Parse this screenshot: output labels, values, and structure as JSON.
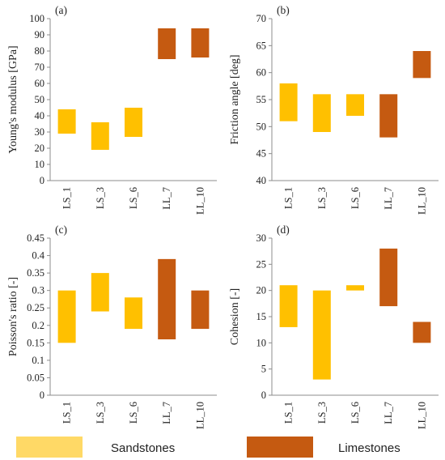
{
  "colors": {
    "sandstone": "#FFC000",
    "limestone": "#C55A11",
    "sandstone_legend": "#FFD966",
    "axis": "#8C8C8C"
  },
  "legend": {
    "sandstones": "Sandstones",
    "limestones": "Limestones"
  },
  "chart_data": [
    {
      "type": "bar",
      "panel_label": "(a)",
      "ylabel": "Young's modulus [GPa]",
      "categories": [
        "LS_1",
        "LS_3",
        "LS_6",
        "LL_7",
        "LL_10"
      ],
      "groups": [
        "sandstone",
        "sandstone",
        "sandstone",
        "limestone",
        "limestone"
      ],
      "low": [
        29,
        19,
        27,
        75,
        76
      ],
      "high": [
        44,
        36,
        45,
        94,
        94
      ],
      "ylim": [
        0,
        100
      ],
      "yticks": [
        "0",
        "10",
        "20",
        "30",
        "40",
        "50",
        "60",
        "70",
        "80",
        "90",
        "100"
      ]
    },
    {
      "type": "bar",
      "panel_label": "(b)",
      "ylabel": "Friction angle [deg]",
      "categories": [
        "LS_1",
        "LS_3",
        "LS_6",
        "LL_7",
        "LL_10"
      ],
      "groups": [
        "sandstone",
        "sandstone",
        "sandstone",
        "limestone",
        "limestone"
      ],
      "low": [
        51,
        49,
        52,
        48,
        59
      ],
      "high": [
        58,
        56,
        56,
        56,
        64
      ],
      "ylim": [
        40,
        70
      ],
      "yticks": [
        "40",
        "45",
        "50",
        "55",
        "60",
        "65",
        "70"
      ]
    },
    {
      "type": "bar",
      "panel_label": "(c)",
      "ylabel": "Poisson's ratio [-]",
      "categories": [
        "LS_1",
        "LS_3",
        "LS_6",
        "LL_7",
        "LL_10"
      ],
      "groups": [
        "sandstone",
        "sandstone",
        "sandstone",
        "limestone",
        "limestone"
      ],
      "low": [
        0.15,
        0.24,
        0.19,
        0.16,
        0.19
      ],
      "high": [
        0.3,
        0.35,
        0.28,
        0.39,
        0.3
      ],
      "ylim": [
        0,
        0.45
      ],
      "yticks": [
        "0",
        "0.05",
        "0.1",
        "0.15",
        "0.2",
        "0.25",
        "0.3",
        "0.35",
        "0.4",
        "0.45"
      ]
    },
    {
      "type": "bar",
      "panel_label": "(d)",
      "ylabel": "Cohesion [-]",
      "categories": [
        "LS_1",
        "LS_3",
        "LS_6",
        "LL_7",
        "LL_10"
      ],
      "groups": [
        "sandstone",
        "sandstone",
        "sandstone",
        "limestone",
        "limestone"
      ],
      "low": [
        13,
        3,
        20,
        17,
        10
      ],
      "high": [
        21,
        20,
        21,
        28,
        14
      ],
      "ylim": [
        0,
        30
      ],
      "yticks": [
        "0",
        "5",
        "10",
        "15",
        "20",
        "25",
        "30"
      ]
    }
  ]
}
